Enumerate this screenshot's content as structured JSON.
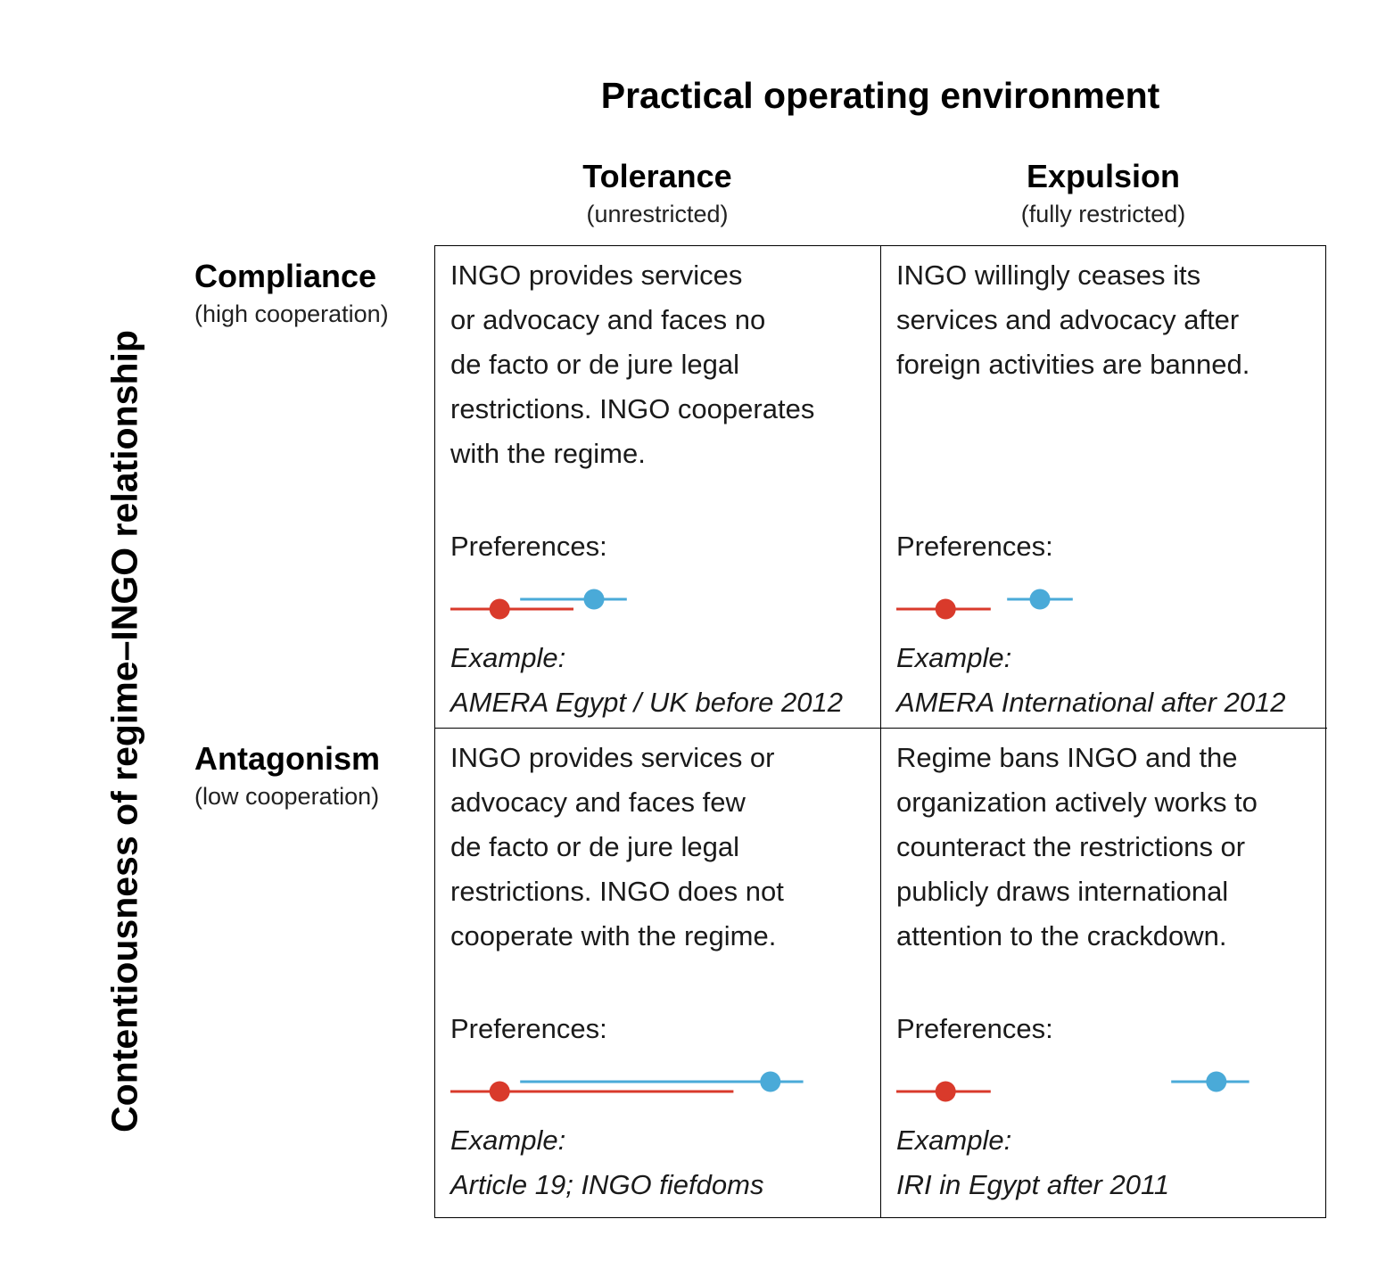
{
  "title": "Practical operating environment",
  "y_axis_title": "Contentiousness of regime–INGO relationship",
  "columns": [
    {
      "name": "Tolerance",
      "sub": "(unrestricted)"
    },
    {
      "name": "Expulsion",
      "sub": "(fully restricted)"
    }
  ],
  "rows": [
    {
      "name": "Compliance",
      "sub": "(high cooperation)"
    },
    {
      "name": "Antagonism",
      "sub": "(low cooperation)"
    }
  ],
  "colors": {
    "regime": "#d93a2b",
    "ingo": "#4aaad8"
  },
  "cells": [
    {
      "text": "INGO provides services\nor advocacy and faces no\nde facto or de jure legal\nrestrictions. INGO cooperates\nwith the regime.",
      "preferences_label": "Preferences:",
      "example_label": "Example:",
      "example": "AMERA Egypt / UK before 2012",
      "preferences": {
        "red": {
          "start": 0.0,
          "point": 0.12,
          "end": 0.3
        },
        "blue": {
          "start": 0.17,
          "point": 0.35,
          "end": 0.43
        }
      }
    },
    {
      "text": "INGO willingly ceases its\nservices and advocacy after\nforeign activities are banned.",
      "preferences_label": "Preferences:",
      "example_label": "Example:",
      "example": "AMERA  International after 2012",
      "preferences": {
        "red": {
          "start": 0.0,
          "point": 0.12,
          "end": 0.23
        },
        "blue": {
          "start": 0.27,
          "point": 0.35,
          "end": 0.43
        }
      }
    },
    {
      "text": "INGO provides services or\nadvocacy and faces few\nde facto or de jure legal\nrestrictions. INGO does not\ncooperate with the regime.",
      "preferences_label": "Preferences:",
      "example_label": "Example:",
      "example": "Article 19; INGO fiefdoms",
      "preferences": {
        "red": {
          "start": 0.0,
          "point": 0.12,
          "end": 0.69
        },
        "blue": {
          "start": 0.17,
          "point": 0.78,
          "end": 0.86
        }
      }
    },
    {
      "text": "Regime bans INGO and the\norganization actively works to\ncounteract the restrictions or\npublicly draws international\nattention to the crackdown.",
      "preferences_label": "Preferences:",
      "example_label": "Example:",
      "example": "IRI in Egypt after 2011",
      "preferences": {
        "red": {
          "start": 0.0,
          "point": 0.12,
          "end": 0.23
        },
        "blue": {
          "start": 0.67,
          "point": 0.78,
          "end": 0.86
        }
      }
    }
  ]
}
